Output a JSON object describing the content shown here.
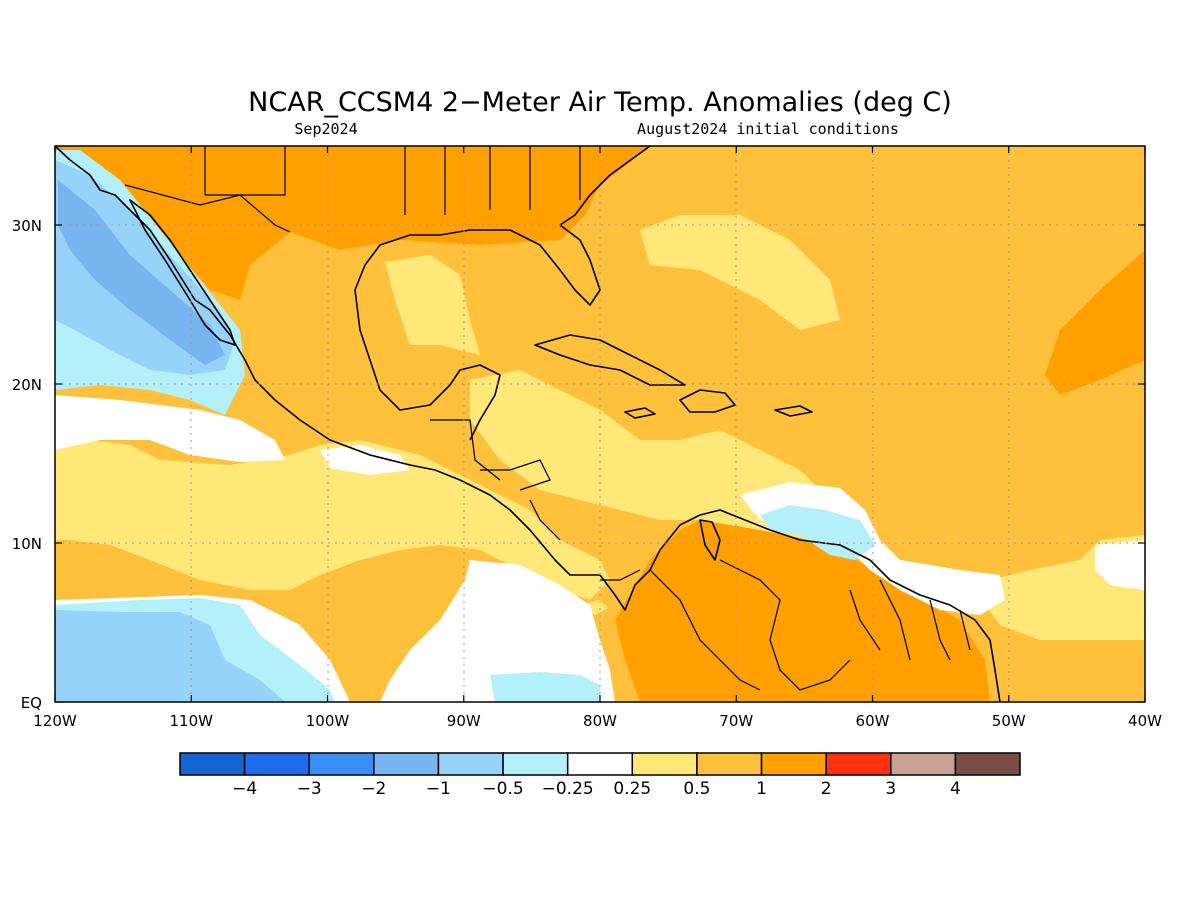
{
  "title": "NCAR_CCSM4 2−Meter Air Temp. Anomalies (deg C)",
  "valid_month": "Sep2024",
  "initial_conditions": "August2024 initial conditions",
  "lon_ticks": [
    "120W",
    "110W",
    "100W",
    "90W",
    "80W",
    "70W",
    "60W",
    "50W",
    "40W"
  ],
  "lat_ticks": [
    "EQ",
    "10N",
    "20N",
    "30N"
  ],
  "colorbar": {
    "colors": [
      "#1464d2",
      "#1e6eeb",
      "#3a8ff5",
      "#78b4f0",
      "#96d2fa",
      "#b4f0fa",
      "#ffffff",
      "#ffe878",
      "#ffc03c",
      "#ffa000",
      "#ff3210",
      "#c8a096",
      "#7a4e46"
    ],
    "labels": [
      "−4",
      "−3",
      "−2",
      "−1",
      "−0.5",
      "−0.25",
      "0.25",
      "0.5",
      "1",
      "2",
      "3",
      "4"
    ]
  },
  "colors": {
    "neg_strong": "#78b4f0",
    "neg_mid": "#96d2fa",
    "neg_weak": "#b4f0fa",
    "neutral": "#ffffff",
    "pos_weak": "#ffe878",
    "pos_mid": "#ffc03c",
    "pos_strong": "#ffa000"
  }
}
